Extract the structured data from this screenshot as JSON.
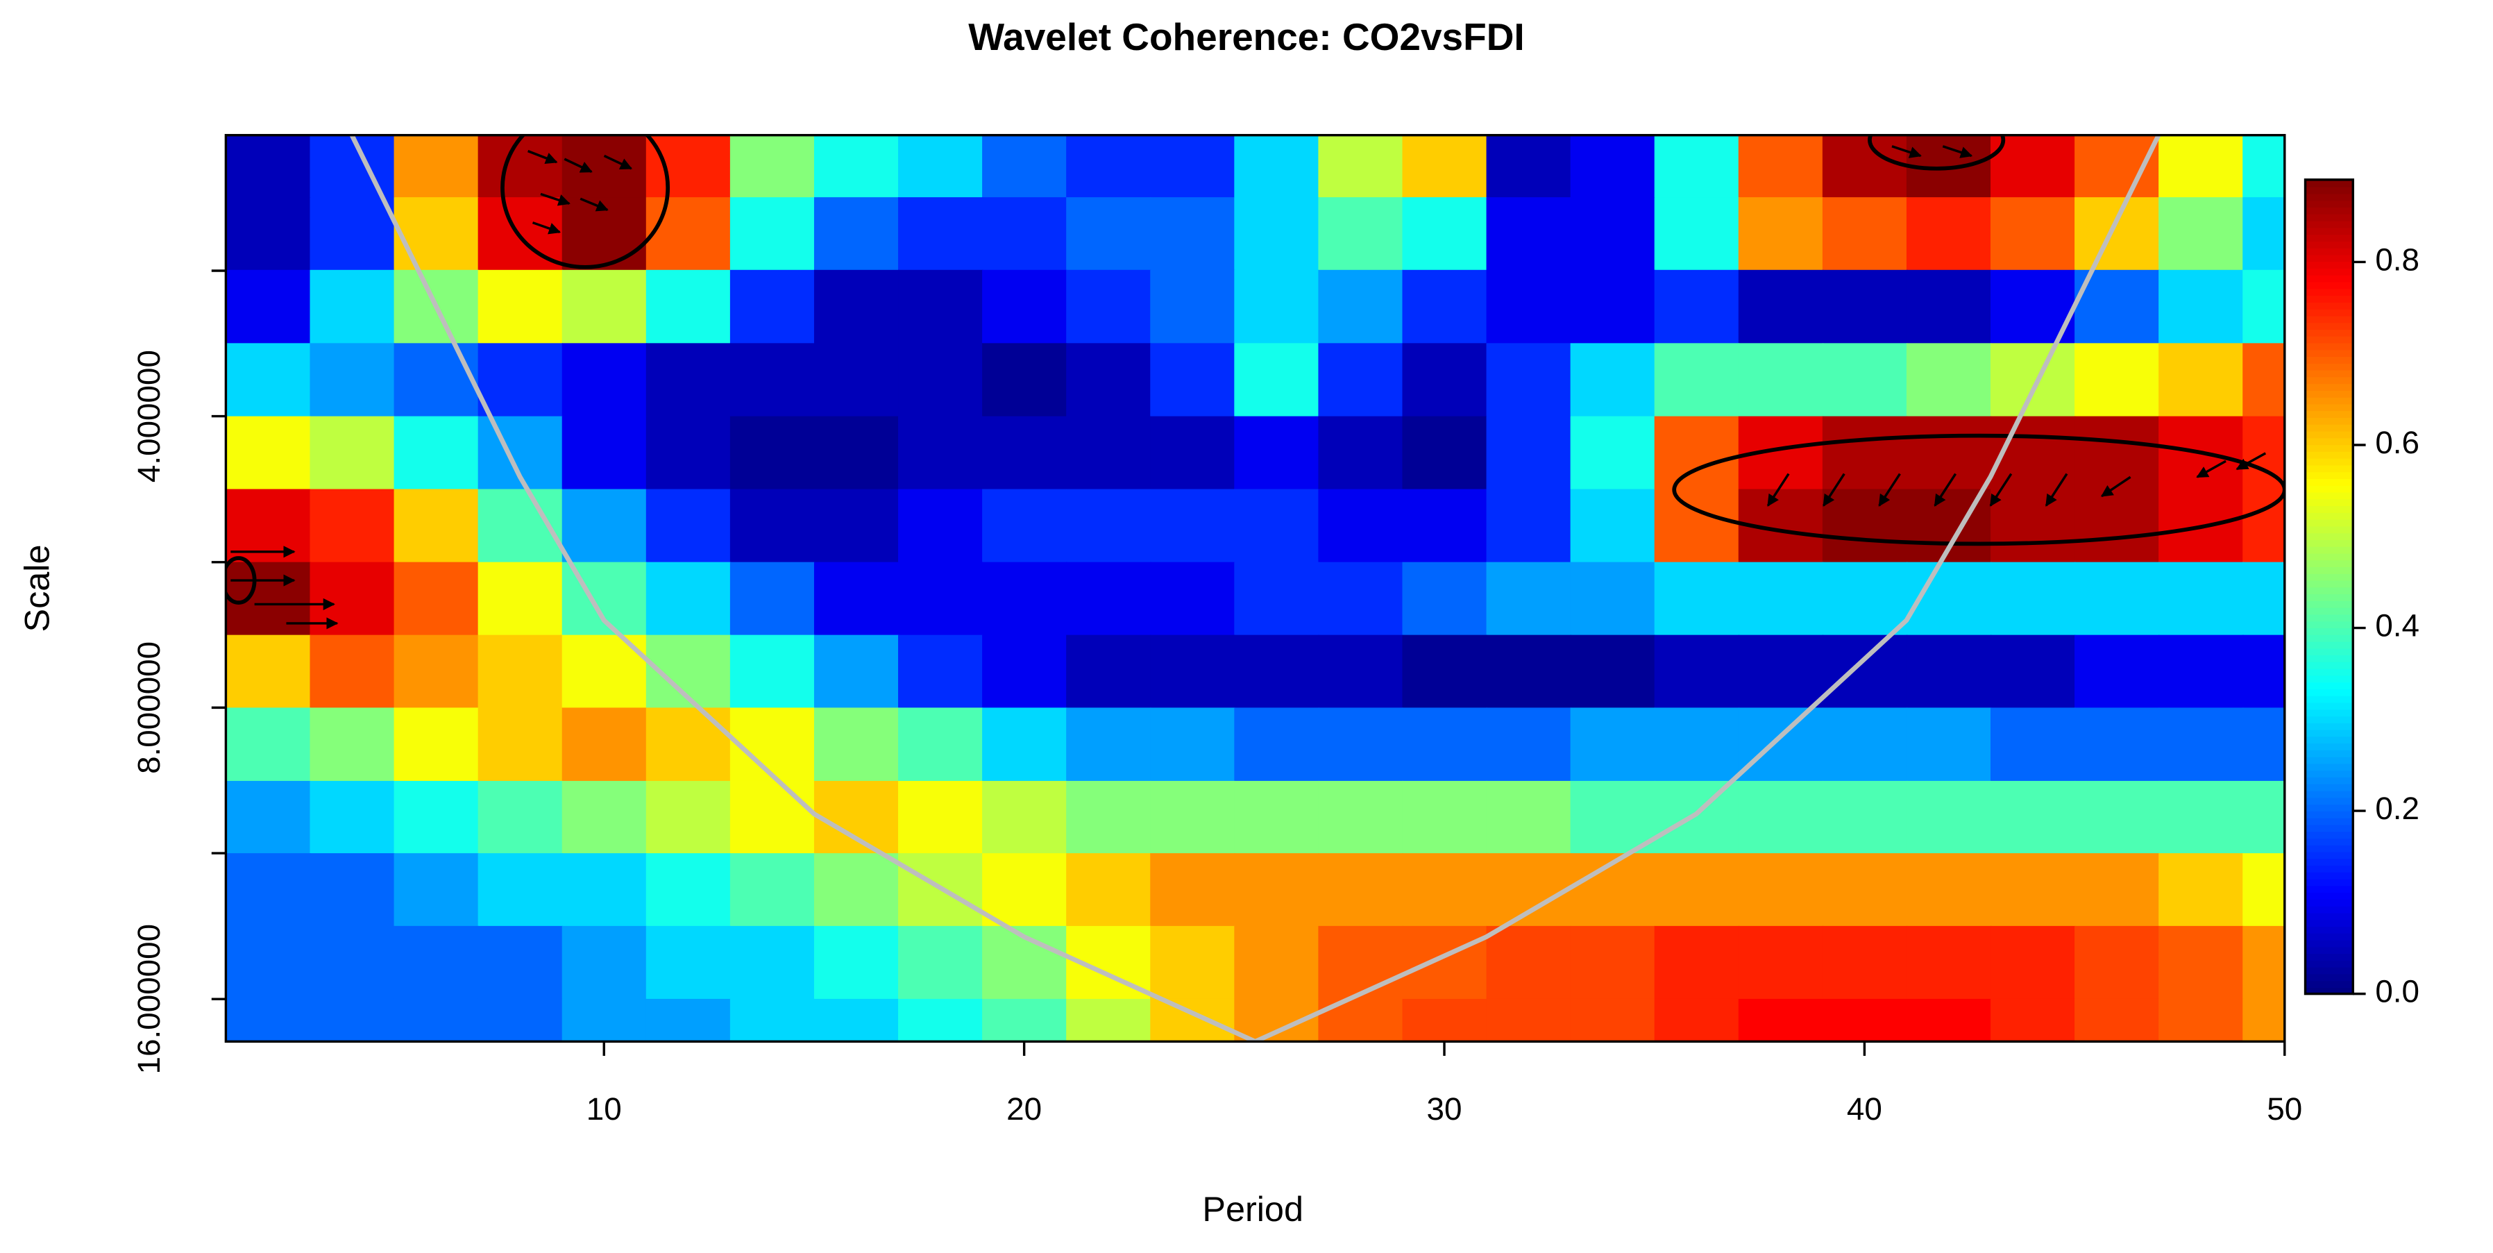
{
  "chart_data": {
    "type": "heatmap",
    "title": "Wavelet Coherence: CO2vsFDI",
    "xlabel": "Period",
    "ylabel": "Scale",
    "xlim": [
      1,
      50
    ],
    "xticks": [
      10,
      20,
      30,
      40,
      50
    ],
    "ylim": [
      2.05,
      17.7
    ],
    "ylog": true,
    "yreverse": true,
    "yticks": [
      {
        "value": 4,
        "label": "4.000000"
      },
      {
        "value": 8,
        "label": "8.000000"
      },
      {
        "value": 16,
        "label": "16.000000"
      }
    ],
    "yticks_minor": [
      2.83,
      5.66,
      11.31
    ],
    "x": [
      2,
      4,
      6,
      8,
      10,
      12,
      14,
      16,
      18,
      20,
      22,
      24,
      26,
      28,
      30,
      32,
      34,
      36,
      38,
      40,
      42,
      44,
      46,
      48,
      50
    ],
    "y": [
      2.18,
      2.59,
      3.08,
      3.67,
      4.36,
      5.19,
      6.17,
      7.34,
      8.72,
      10.4,
      12.3,
      14.7,
      17.4
    ],
    "z": [
      [
        0.05,
        0.15,
        0.65,
        0.85,
        0.88,
        0.75,
        0.45,
        0.35,
        0.3,
        0.2,
        0.15,
        0.15,
        0.3,
        0.5,
        0.6,
        0.05,
        0.1,
        0.35,
        0.7,
        0.85,
        0.88,
        0.8,
        0.7,
        0.55,
        0.35
      ],
      [
        0.05,
        0.15,
        0.6,
        0.8,
        0.88,
        0.7,
        0.35,
        0.2,
        0.15,
        0.15,
        0.2,
        0.2,
        0.3,
        0.4,
        0.35,
        0.1,
        0.1,
        0.35,
        0.65,
        0.7,
        0.75,
        0.7,
        0.6,
        0.45,
        0.3
      ],
      [
        0.1,
        0.3,
        0.45,
        0.55,
        0.5,
        0.35,
        0.15,
        0.05,
        0.05,
        0.1,
        0.15,
        0.2,
        0.3,
        0.25,
        0.15,
        0.1,
        0.1,
        0.15,
        0.05,
        0.05,
        0.05,
        0.1,
        0.2,
        0.3,
        0.35
      ],
      [
        0.3,
        0.25,
        0.2,
        0.15,
        0.1,
        0.05,
        0.05,
        0.05,
        0.05,
        0.02,
        0.05,
        0.15,
        0.35,
        0.15,
        0.05,
        0.15,
        0.3,
        0.4,
        0.4,
        0.4,
        0.45,
        0.5,
        0.55,
        0.6,
        0.7
      ],
      [
        0.55,
        0.5,
        0.35,
        0.25,
        0.1,
        0.05,
        0.02,
        0.02,
        0.05,
        0.05,
        0.05,
        0.05,
        0.1,
        0.05,
        0.02,
        0.15,
        0.35,
        0.7,
        0.8,
        0.85,
        0.85,
        0.85,
        0.85,
        0.8,
        0.75
      ],
      [
        0.8,
        0.75,
        0.6,
        0.4,
        0.25,
        0.15,
        0.05,
        0.05,
        0.1,
        0.15,
        0.15,
        0.15,
        0.15,
        0.1,
        0.1,
        0.15,
        0.3,
        0.7,
        0.85,
        0.88,
        0.88,
        0.85,
        0.85,
        0.8,
        0.75
      ],
      [
        0.88,
        0.8,
        0.7,
        0.55,
        0.4,
        0.3,
        0.2,
        0.1,
        0.1,
        0.1,
        0.1,
        0.1,
        0.15,
        0.15,
        0.2,
        0.25,
        0.25,
        0.3,
        0.3,
        0.3,
        0.3,
        0.3,
        0.3,
        0.3,
        0.3
      ],
      [
        0.6,
        0.7,
        0.65,
        0.6,
        0.55,
        0.45,
        0.35,
        0.25,
        0.15,
        0.1,
        0.05,
        0.05,
        0.05,
        0.05,
        0.02,
        0.02,
        0.02,
        0.05,
        0.05,
        0.05,
        0.05,
        0.05,
        0.1,
        0.1,
        0.1
      ],
      [
        0.4,
        0.45,
        0.55,
        0.6,
        0.65,
        0.6,
        0.55,
        0.45,
        0.4,
        0.3,
        0.25,
        0.25,
        0.2,
        0.2,
        0.2,
        0.2,
        0.25,
        0.25,
        0.25,
        0.25,
        0.25,
        0.2,
        0.2,
        0.2,
        0.2
      ],
      [
        0.25,
        0.3,
        0.35,
        0.4,
        0.45,
        0.5,
        0.55,
        0.6,
        0.55,
        0.5,
        0.45,
        0.45,
        0.45,
        0.45,
        0.45,
        0.45,
        0.4,
        0.4,
        0.4,
        0.4,
        0.4,
        0.4,
        0.4,
        0.4,
        0.4
      ],
      [
        0.2,
        0.2,
        0.25,
        0.3,
        0.3,
        0.35,
        0.4,
        0.45,
        0.5,
        0.55,
        0.6,
        0.65,
        0.65,
        0.65,
        0.65,
        0.65,
        0.65,
        0.65,
        0.65,
        0.65,
        0.65,
        0.65,
        0.65,
        0.6,
        0.55
      ],
      [
        0.2,
        0.2,
        0.2,
        0.2,
        0.25,
        0.3,
        0.3,
        0.35,
        0.4,
        0.45,
        0.55,
        0.6,
        0.65,
        0.7,
        0.7,
        0.72,
        0.72,
        0.75,
        0.75,
        0.75,
        0.75,
        0.75,
        0.72,
        0.7,
        0.65
      ],
      [
        0.2,
        0.2,
        0.2,
        0.2,
        0.25,
        0.25,
        0.3,
        0.3,
        0.35,
        0.4,
        0.5,
        0.6,
        0.65,
        0.7,
        0.72,
        0.72,
        0.72,
        0.75,
        0.78,
        0.78,
        0.78,
        0.75,
        0.72,
        0.7,
        0.65
      ]
    ],
    "zlim": [
      0,
      0.89
    ],
    "colorbar_ticks": [
      {
        "value": 0,
        "label": "0.0"
      },
      {
        "value": 0.2,
        "label": "0.2"
      },
      {
        "value": 0.4,
        "label": "0.4"
      },
      {
        "value": 0.6,
        "label": "0.6"
      },
      {
        "value": 0.8,
        "label": "0.8"
      }
    ],
    "coi": {
      "color": "#bebebe",
      "x": [
        4,
        8,
        10,
        15,
        20,
        25.5,
        31,
        36,
        41,
        43,
        47
      ],
      "y": [
        2.05,
        4.62,
        6.5,
        10.3,
        13.8,
        17.7,
        13.8,
        10.3,
        6.5,
        4.62,
        2.05
      ]
    }
  }
}
